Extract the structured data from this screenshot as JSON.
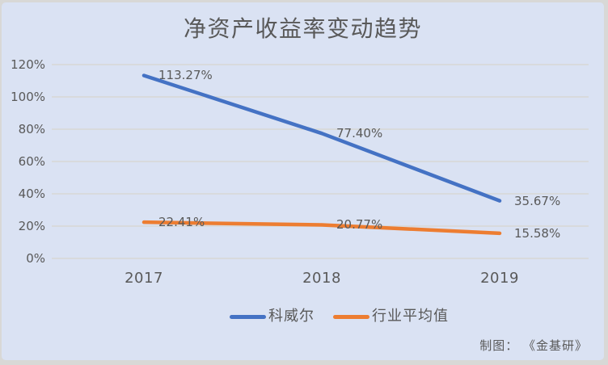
{
  "title": "净资产收益率变动趋势",
  "credit": "制图： 《金基研》",
  "colors": {
    "outer_background": "#d8d8d6",
    "panel_background": "#dae2f3",
    "gridline": "#d7d8d4",
    "text": "#595959",
    "series1": "#4472c4",
    "series2": "#ed7d31"
  },
  "chart_data": {
    "type": "line",
    "title": "净资产收益率变动趋势",
    "categories": [
      "2017",
      "2018",
      "2019"
    ],
    "series": [
      {
        "name": "科威尔",
        "color": "#4472c4",
        "values": [
          113.27,
          77.4,
          35.67
        ],
        "data_labels": [
          "113.27%",
          "77.40%",
          "35.67%"
        ]
      },
      {
        "name": "行业平均值",
        "color": "#ed7d31",
        "values": [
          22.41,
          20.77,
          15.58
        ],
        "data_labels": [
          "22.41%",
          "20.77%",
          "15.58%"
        ]
      }
    ],
    "y_axis": {
      "tick_labels": [
        "120%",
        "100%",
        "80%",
        "60%",
        "40%",
        "20%",
        "0%"
      ],
      "tick_values": [
        120,
        100,
        80,
        60,
        40,
        20,
        0
      ],
      "min": 0,
      "max": 120,
      "unit": "%"
    },
    "grid": true,
    "legend_position": "bottom"
  }
}
